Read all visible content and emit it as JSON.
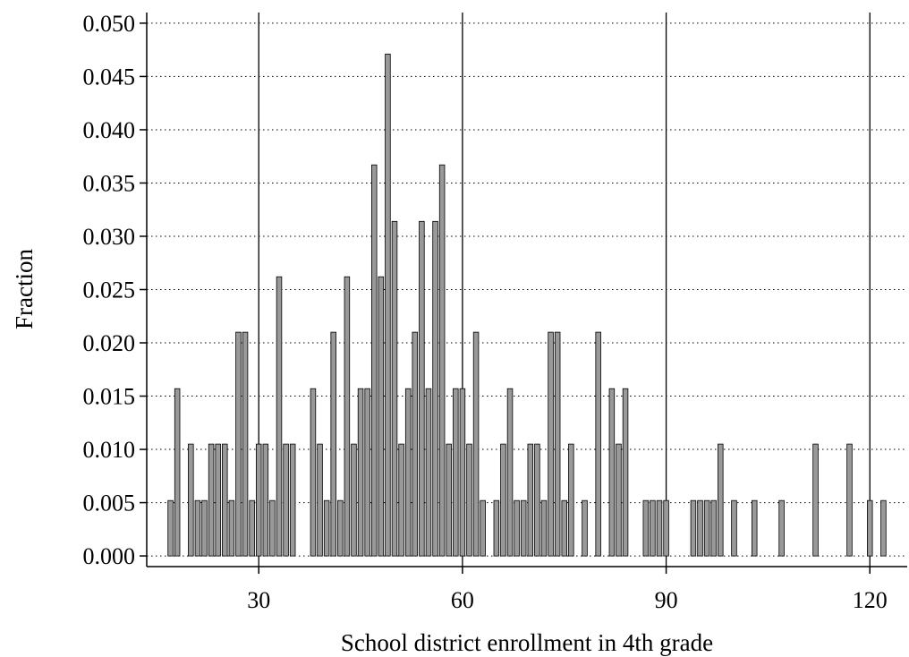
{
  "chart_data": {
    "type": "bar",
    "title": "",
    "xlabel": "School district enrollment in 4th grade",
    "ylabel": "Fraction",
    "xlim": [
      13.5,
      125.5
    ],
    "ylim": [
      -0.001,
      0.051
    ],
    "xticks": [
      30,
      60,
      90,
      120
    ],
    "xtick_labels": [
      "30",
      "60",
      "90",
      "120"
    ],
    "yticks": [
      0.0,
      0.005,
      0.01,
      0.015,
      0.02,
      0.025,
      0.03,
      0.035,
      0.04,
      0.045,
      0.05
    ],
    "ytick_labels": [
      "0.000",
      "0.005",
      "0.010",
      "0.015",
      "0.020",
      "0.025",
      "0.030",
      "0.035",
      "0.040",
      "0.045",
      "0.050"
    ],
    "grid": {
      "y": "dotted",
      "x": "solid at ticks"
    },
    "bar_color": "#999999",
    "bar_edge_color": "#000000",
    "bar_width": 0.75,
    "x": [
      17,
      18,
      20,
      21,
      22,
      23,
      24,
      25,
      26,
      27,
      28,
      29,
      30,
      31,
      32,
      33,
      34,
      35,
      38,
      39,
      40,
      41,
      42,
      43,
      44,
      45,
      46,
      47,
      48,
      49,
      50,
      51,
      52,
      53,
      54,
      55,
      56,
      57,
      58,
      59,
      60,
      61,
      62,
      63,
      65,
      66,
      67,
      68,
      69,
      70,
      71,
      72,
      73,
      74,
      75,
      76,
      78,
      80,
      82,
      83,
      84,
      87,
      88,
      89,
      90,
      94,
      95,
      96,
      97,
      98,
      100,
      103,
      107,
      112,
      117,
      120,
      122
    ],
    "values": [
      0.0052,
      0.0157,
      0.0105,
      0.0052,
      0.0052,
      0.0105,
      0.0105,
      0.0105,
      0.0052,
      0.021,
      0.021,
      0.0052,
      0.0105,
      0.0105,
      0.0052,
      0.0262,
      0.0105,
      0.0105,
      0.0157,
      0.0105,
      0.0052,
      0.021,
      0.0052,
      0.0262,
      0.0105,
      0.0157,
      0.0157,
      0.0367,
      0.0262,
      0.0471,
      0.0314,
      0.0105,
      0.0157,
      0.021,
      0.0314,
      0.0157,
      0.0314,
      0.0367,
      0.0105,
      0.0157,
      0.0157,
      0.0105,
      0.021,
      0.0052,
      0.0052,
      0.0105,
      0.0157,
      0.0052,
      0.0052,
      0.0105,
      0.0105,
      0.0052,
      0.021,
      0.021,
      0.0052,
      0.0105,
      0.0052,
      0.021,
      0.0157,
      0.0105,
      0.0157,
      0.0052,
      0.0052,
      0.0052,
      0.0052,
      0.0052,
      0.0052,
      0.0052,
      0.0052,
      0.0105,
      0.0052,
      0.0052,
      0.0052,
      0.0105,
      0.0105,
      0.0052,
      0.0052
    ]
  }
}
